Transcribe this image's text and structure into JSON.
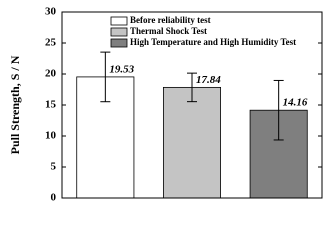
{
  "chart_data": {
    "type": "bar",
    "y_label": "Pull Strength, S / N",
    "series": [
      {
        "name": "Before reliability test",
        "color": "#ffffff",
        "values": [
          19.53
        ],
        "errors": [
          4.0
        ]
      },
      {
        "name": "Thermal Shock Test",
        "color": "#c4c4c4",
        "values": [
          17.84
        ],
        "errors": [
          2.3
        ]
      },
      {
        "name": "High Temperature and High Humidity Test",
        "color": "#7f7f7f",
        "values": [
          14.16
        ],
        "errors": [
          4.8
        ]
      }
    ],
    "ylim": [
      0,
      30
    ],
    "yticks": [
      0,
      5,
      10,
      15,
      20,
      25,
      30
    ]
  }
}
